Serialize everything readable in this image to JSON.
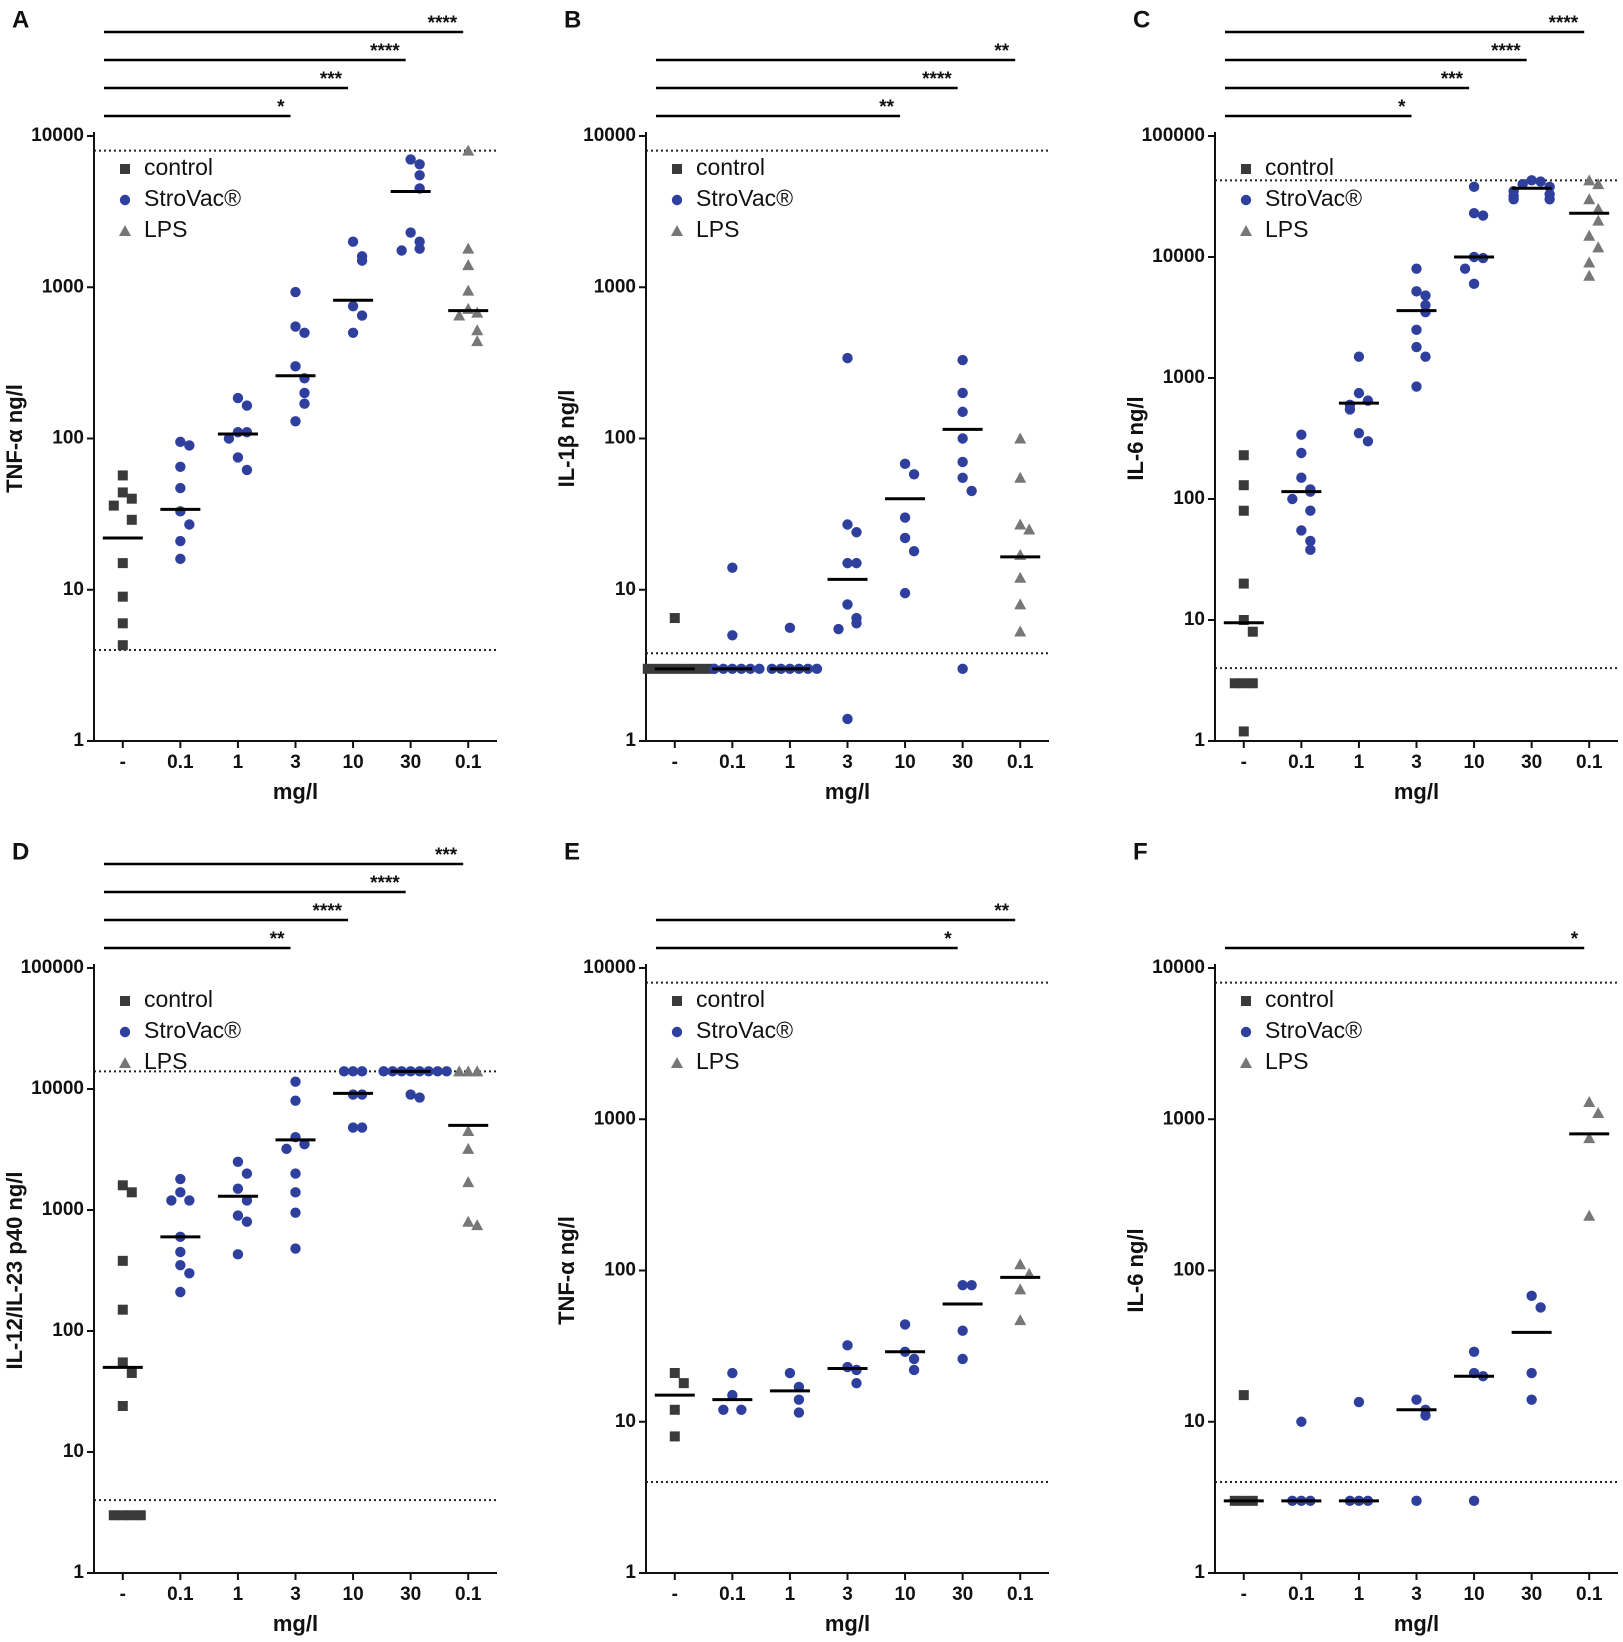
{
  "chart_data": [
    {
      "type": "dot",
      "letter": "A",
      "y_label": "TNF-α ng/l",
      "x_label": "mg/l",
      "log_y": true,
      "categories": [
        "-",
        "0.1",
        "1",
        "3",
        "10",
        "30",
        "0.1"
      ],
      "ylim": [
        1,
        10000
      ],
      "yticks": [
        1,
        10,
        100,
        1000,
        10000
      ],
      "reference_lines": [
        8000,
        4
      ],
      "series": [
        {
          "name": "control",
          "color": "#3a3a3a",
          "marker": "square",
          "values": [
            [
              57,
              44,
              40,
              36,
              29,
              15,
              9,
              6,
              4.3
            ],
            null,
            null,
            null,
            null,
            null,
            null
          ]
        },
        {
          "name": "StroVac®",
          "color": "#2e3f9e",
          "marker": "circle",
          "values": [
            null,
            [
              95,
              90,
              65,
              47,
              33,
              27,
              21,
              16
            ],
            [
              185,
              165,
              110,
              110,
              100,
              75,
              62
            ],
            [
              930,
              550,
              500,
              300,
              250,
              200,
              170,
              130
            ],
            [
              2000,
              1600,
              1500,
              750,
              650,
              500
            ],
            [
              7000,
              6500,
              5500,
              4500,
              2300,
              2000,
              1800,
              1750
            ],
            null
          ]
        },
        {
          "name": "LPS",
          "color": "#777777",
          "marker": "triangle",
          "values": [
            null,
            null,
            null,
            null,
            null,
            null,
            [
              8000,
              1800,
              1400,
              950,
              720,
              680,
              650,
              520,
              440
            ]
          ]
        }
      ],
      "medians": [
        22,
        34,
        107,
        260,
        820,
        4300,
        700
      ],
      "comparisons": [
        {
          "from": 0,
          "to": 3,
          "label": "*"
        },
        {
          "from": 0,
          "to": 4,
          "label": "***"
        },
        {
          "from": 0,
          "to": 5,
          "label": "****"
        },
        {
          "from": 0,
          "to": 6,
          "label": "****"
        }
      ]
    },
    {
      "type": "dot",
      "letter": "B",
      "y_label": "IL-1β ng/l",
      "x_label": "mg/l",
      "log_y": true,
      "categories": [
        "-",
        "0.1",
        "1",
        "3",
        "10",
        "30",
        "0.1"
      ],
      "ylim": [
        1,
        10000
      ],
      "yticks": [
        1,
        10,
        100,
        1000,
        10000
      ],
      "reference_lines": [
        8000,
        3.8
      ],
      "series": [
        {
          "name": "control",
          "color": "#3a3a3a",
          "marker": "square",
          "values": [
            [
              6.5,
              3,
              3,
              3,
              3,
              3,
              3,
              3,
              3
            ],
            null,
            null,
            null,
            null,
            null,
            null
          ]
        },
        {
          "name": "StroVac®",
          "color": "#2e3f9e",
          "marker": "circle",
          "values": [
            null,
            [
              14,
              5,
              3,
              3,
              3,
              3,
              3,
              3
            ],
            [
              5.6,
              3,
              3,
              3,
              3,
              3,
              3
            ],
            [
              340,
              27,
              24,
              15,
              15,
              8,
              6.5,
              6,
              5.5,
              1.4
            ],
            [
              68,
              58,
              30,
              22,
              18,
              9.5
            ],
            [
              330,
              200,
              150,
              100,
              70,
              55,
              45,
              3
            ],
            null
          ]
        },
        {
          "name": "LPS",
          "color": "#777777",
          "marker": "triangle",
          "values": [
            null,
            null,
            null,
            null,
            null,
            null,
            [
              100,
              55,
              27,
              25,
              17,
              12,
              8,
              5.3
            ]
          ]
        }
      ],
      "medians": [
        3,
        3,
        3,
        11.7,
        40,
        115,
        16.5
      ],
      "comparisons": [
        {
          "from": 0,
          "to": 4,
          "label": "**"
        },
        {
          "from": 0,
          "to": 5,
          "label": "****"
        },
        {
          "from": 0,
          "to": 6,
          "label": "**"
        }
      ]
    },
    {
      "type": "dot",
      "letter": "C",
      "y_label": "IL-6 ng/l",
      "x_label": "mg/l",
      "log_y": true,
      "categories": [
        "-",
        "0.1",
        "1",
        "3",
        "10",
        "30",
        "0.1"
      ],
      "ylim": [
        1,
        100000
      ],
      "yticks": [
        1,
        10,
        100,
        1000,
        10000,
        100000
      ],
      "reference_lines": [
        43000,
        4
      ],
      "series": [
        {
          "name": "control",
          "color": "#3a3a3a",
          "marker": "square",
          "values": [
            [
              230,
              130,
              80,
              20,
              10,
              8,
              3,
              3,
              3,
              1.2
            ],
            null,
            null,
            null,
            null,
            null,
            null
          ]
        },
        {
          "name": "StroVac®",
          "color": "#2e3f9e",
          "marker": "circle",
          "values": [
            null,
            [
              340,
              240,
              150,
              120,
              115,
              100,
              80,
              55,
              45,
              38
            ],
            [
              1500,
              750,
              650,
              600,
              550,
              350,
              300
            ],
            [
              8000,
              5200,
              4800,
              4000,
              3500,
              2500,
              1800,
              1500,
              850
            ],
            [
              38000,
              23000,
              22000,
              10000,
              9800,
              8000,
              6000
            ],
            [
              43000,
              42000,
              40000,
              38000,
              35000,
              33000,
              32000,
              30000,
              30000
            ],
            null
          ]
        },
        {
          "name": "LPS",
          "color": "#777777",
          "marker": "triangle",
          "values": [
            null,
            null,
            null,
            null,
            null,
            null,
            [
              43000,
              40000,
              30000,
              25000,
              20000,
              15000,
              12000,
              9000,
              7000
            ]
          ]
        }
      ],
      "medians": [
        9.5,
        115,
        620,
        3600,
        10000,
        37000,
        23000
      ],
      "comparisons": [
        {
          "from": 0,
          "to": 3,
          "label": "*"
        },
        {
          "from": 0,
          "to": 4,
          "label": "***"
        },
        {
          "from": 0,
          "to": 5,
          "label": "****"
        },
        {
          "from": 0,
          "to": 6,
          "label": "****"
        }
      ]
    },
    {
      "type": "dot",
      "letter": "D",
      "y_label": "IL-12/IL-23 p40 ng/l",
      "x_label": "mg/l",
      "log_y": true,
      "categories": [
        "-",
        "0.1",
        "1",
        "3",
        "10",
        "30",
        "0.1"
      ],
      "ylim": [
        1,
        100000
      ],
      "yticks": [
        1,
        10,
        100,
        1000,
        10000,
        100000
      ],
      "reference_lines": [
        14000,
        4
      ],
      "series": [
        {
          "name": "control",
          "color": "#3a3a3a",
          "marker": "square",
          "values": [
            [
              1600,
              1400,
              380,
              150,
              55,
              45,
              24,
              3,
              3,
              3,
              3
            ],
            null,
            null,
            null,
            null,
            null,
            null
          ]
        },
        {
          "name": "StroVac®",
          "color": "#2e3f9e",
          "marker": "circle",
          "values": [
            null,
            [
              1800,
              1400,
              1200,
              1200,
              600,
              450,
              350,
              300,
              210
            ],
            [
              2500,
              2000,
              1500,
              1200,
              900,
              800,
              430
            ],
            [
              11500,
              8000,
              4000,
              3500,
              3200,
              2000,
              1400,
              950,
              480
            ],
            [
              14000,
              14000,
              14000,
              9000,
              9000,
              4800,
              4800
            ],
            [
              14000,
              14000,
              14000,
              14000,
              14000,
              14000,
              14000,
              14000,
              9000,
              8500
            ],
            null
          ]
        },
        {
          "name": "LPS",
          "color": "#777777",
          "marker": "triangle",
          "values": [
            null,
            null,
            null,
            null,
            null,
            null,
            [
              14000,
              14000,
              14000,
              4500,
              3200,
              1700,
              800,
              750
            ]
          ]
        }
      ],
      "medians": [
        50,
        600,
        1300,
        3800,
        9200,
        14000,
        5000
      ],
      "comparisons": [
        {
          "from": 0,
          "to": 3,
          "label": "**"
        },
        {
          "from": 0,
          "to": 4,
          "label": "****"
        },
        {
          "from": 0,
          "to": 5,
          "label": "****"
        },
        {
          "from": 0,
          "to": 6,
          "label": "***"
        }
      ]
    },
    {
      "type": "dot",
      "letter": "E",
      "y_label": "TNF-α ng/l",
      "x_label": "mg/l",
      "log_y": true,
      "categories": [
        "-",
        "0.1",
        "1",
        "3",
        "10",
        "30",
        "0.1"
      ],
      "ylim": [
        1,
        10000
      ],
      "yticks": [
        1,
        10,
        100,
        1000,
        10000
      ],
      "reference_lines": [
        8000,
        4
      ],
      "series": [
        {
          "name": "control",
          "color": "#3a3a3a",
          "marker": "square",
          "values": [
            [
              21,
              18,
              12,
              8
            ],
            null,
            null,
            null,
            null,
            null,
            null
          ]
        },
        {
          "name": "StroVac®",
          "color": "#2e3f9e",
          "marker": "circle",
          "values": [
            null,
            [
              21,
              15,
              12,
              12
            ],
            [
              21,
              17,
              14,
              11.5
            ],
            [
              32,
              23,
              22,
              18
            ],
            [
              44,
              29,
              26,
              22
            ],
            [
              80,
              80,
              40,
              26
            ],
            null
          ]
        },
        {
          "name": "LPS",
          "color": "#777777",
          "marker": "triangle",
          "values": [
            null,
            null,
            null,
            null,
            null,
            null,
            [
              110,
              95,
              75,
              47
            ]
          ]
        }
      ],
      "medians": [
        15,
        14,
        16,
        22.5,
        29,
        60,
        90
      ],
      "comparisons": [
        {
          "from": 0,
          "to": 5,
          "label": "*"
        },
        {
          "from": 0,
          "to": 6,
          "label": "**"
        }
      ]
    },
    {
      "type": "dot",
      "letter": "F",
      "y_label": "IL-6 ng/l",
      "x_label": "mg/l",
      "log_y": true,
      "categories": [
        "-",
        "0.1",
        "1",
        "3",
        "10",
        "30",
        "0.1"
      ],
      "ylim": [
        1,
        10000
      ],
      "yticks": [
        1,
        10,
        100,
        1000,
        10000
      ],
      "reference_lines": [
        8000,
        4
      ],
      "series": [
        {
          "name": "control",
          "color": "#3a3a3a",
          "marker": "square",
          "values": [
            [
              15,
              3,
              3,
              3
            ],
            null,
            null,
            null,
            null,
            null,
            null
          ]
        },
        {
          "name": "StroVac®",
          "color": "#2e3f9e",
          "marker": "circle",
          "values": [
            null,
            [
              10,
              3,
              3,
              3
            ],
            [
              13.5,
              3,
              3,
              3
            ],
            [
              14,
              12,
              11,
              3
            ],
            [
              29,
              21,
              20,
              3
            ],
            [
              68,
              57,
              21,
              14
            ],
            null
          ]
        },
        {
          "name": "LPS",
          "color": "#777777",
          "marker": "triangle",
          "values": [
            null,
            null,
            null,
            null,
            null,
            null,
            [
              1300,
              1100,
              750,
              230
            ]
          ]
        }
      ],
      "medians": [
        3,
        3,
        3,
        12,
        20,
        39,
        800
      ],
      "comparisons": [
        {
          "from": 0,
          "to": 6,
          "label": "*"
        }
      ]
    }
  ]
}
